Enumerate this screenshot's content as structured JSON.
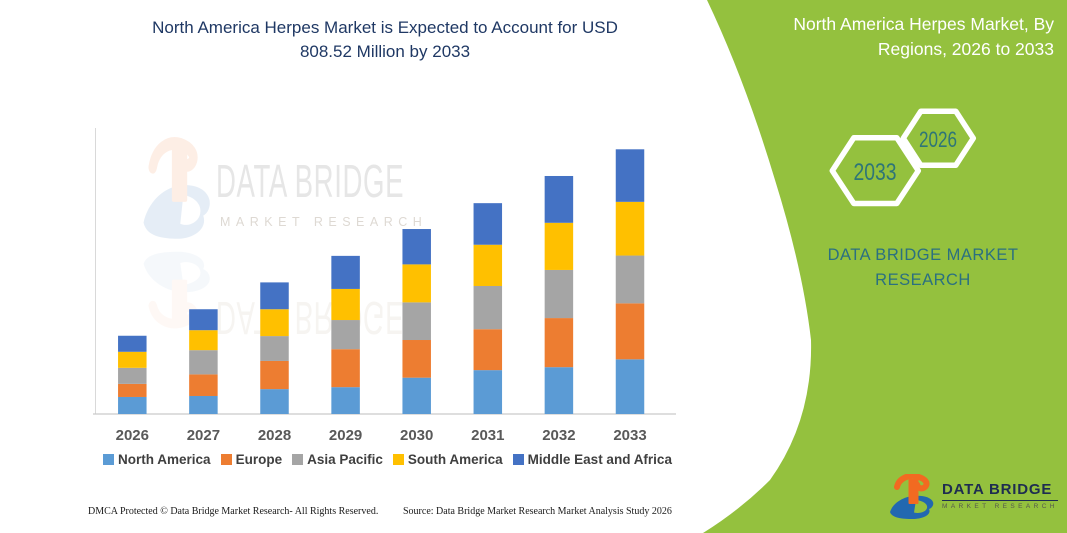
{
  "header": {
    "title_line1": "North America Herpes Market is Expected to Account for USD",
    "title_line2": "808.52 Million by 2033",
    "title_color": "#1f3864"
  },
  "panel": {
    "bg_color": "#94c13e",
    "title_line1": "North America Herpes Market, By",
    "title_line2": "Regions, 2026 to 2033",
    "hex_large_label": "2033",
    "hex_small_label": "2026",
    "hex_text_color": "#2e7577",
    "brand_line1": "DATA BRIDGE MARKET",
    "brand_line2": "RESEARCH",
    "brand_text_color": "#2b7080"
  },
  "watermark": {
    "line1": "DATA BRIDGE",
    "line2": "MARKET RESEARCH"
  },
  "logo": {
    "name_text": "DATA BRIDGE",
    "sub_text": "MARKET RESEARCH"
  },
  "footer": {
    "dmca": "DMCA Protected © Data Bridge Market Research-  All Rights Reserved.",
    "source": "Source: Data Bridge Market Research  Market Analysis Study 2026"
  },
  "chart_data": {
    "type": "bar",
    "stacked": true,
    "title": "North America Herpes Market, By Regions, 2026 to 2033",
    "unit": "USD Million",
    "categories": [
      "2026",
      "2027",
      "2028",
      "2029",
      "2030",
      "2031",
      "2032",
      "2033"
    ],
    "series": [
      {
        "name": "North America",
        "color": "#5B9BD5",
        "values": [
          52,
          55,
          76,
          82,
          111,
          134,
          143,
          167
        ]
      },
      {
        "name": "Europe",
        "color": "#ED7D31",
        "values": [
          40,
          66,
          86,
          116,
          115,
          125,
          150,
          171
        ]
      },
      {
        "name": "Asia Pacific",
        "color": "#A5A5A5",
        "values": [
          49,
          74,
          76,
          89,
          115,
          132,
          147,
          146
        ]
      },
      {
        "name": "South America",
        "color": "#FFC000",
        "values": [
          49,
          61,
          82,
          95,
          116,
          126,
          144,
          164
        ]
      },
      {
        "name": "Middle East and Africa",
        "color": "#4472C4",
        "values": [
          49,
          64,
          82,
          101,
          108,
          127,
          143,
          160.52
        ]
      }
    ],
    "total_2033": 808.52,
    "legend_position": "bottom",
    "gridlines": false,
    "ylim": [
      0,
      850
    ]
  }
}
